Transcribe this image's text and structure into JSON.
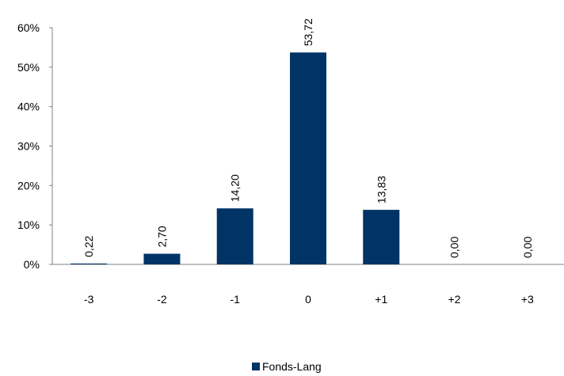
{
  "chart_data": {
    "type": "bar",
    "categories": [
      "-3",
      "-2",
      "-1",
      "0",
      "+1",
      "+2",
      "+3"
    ],
    "series": [
      {
        "name": "Fonds-Lang",
        "values": [
          0.22,
          2.7,
          14.2,
          53.72,
          13.83,
          0.0,
          0.0
        ],
        "labels": [
          "0,22",
          "2,70",
          "14,20",
          "53,72",
          "13,83",
          "0,00",
          "0,00"
        ],
        "color": "#003366"
      }
    ],
    "yticks": [
      "0%",
      "10%",
      "20%",
      "30%",
      "40%",
      "50%",
      "60%"
    ],
    "ylim": [
      0,
      60
    ],
    "grid": false,
    "legend_position": "bottom"
  }
}
